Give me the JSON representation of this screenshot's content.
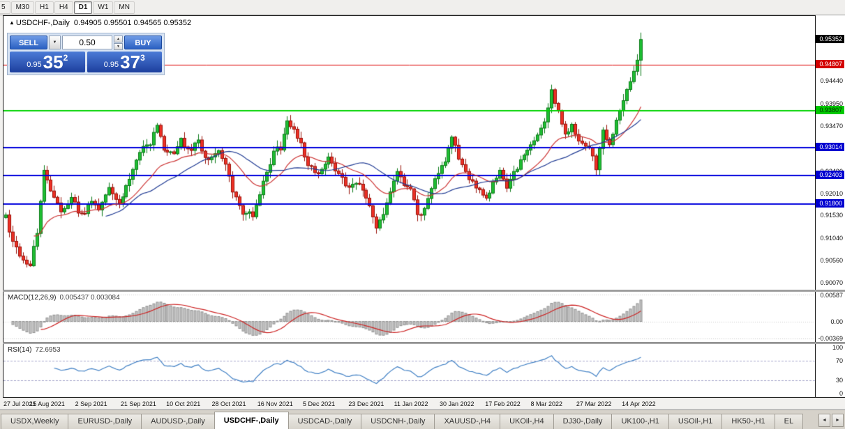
{
  "toolbar": {
    "timeframes": [
      {
        "label": "5",
        "active": false
      },
      {
        "label": "M30",
        "active": false
      },
      {
        "label": "H1",
        "active": false
      },
      {
        "label": "H4",
        "active": false
      },
      {
        "label": "D1",
        "active": true
      },
      {
        "label": "W1",
        "active": false
      },
      {
        "label": "MN",
        "active": false
      }
    ]
  },
  "chart": {
    "marker": "▲",
    "symbol_title": "USDCHF-,Daily",
    "ohlc": "0.94905 0.95501 0.94565 0.95352"
  },
  "trade_panel": {
    "sell_label": "SELL",
    "buy_label": "BUY",
    "lot_value": "0.50",
    "combo_arrow": "▼",
    "spin_up": "▲",
    "spin_down": "▼",
    "sell_prefix": "0.95",
    "sell_pips": "35",
    "sell_frac": "2",
    "buy_prefix": "0.95",
    "buy_pips": "37",
    "buy_frac": "3"
  },
  "price_axis": {
    "ticks": [
      {
        "label": "0.94820",
        "value": 0.9482
      },
      {
        "label": "0.94440",
        "value": 0.9444
      },
      {
        "label": "0.93950",
        "value": 0.9395
      },
      {
        "label": "0.93470",
        "value": 0.9347
      },
      {
        "label": "0.92980",
        "value": 0.9298
      },
      {
        "label": "0.92490",
        "value": 0.9249
      },
      {
        "label": "0.92010",
        "value": 0.9201
      },
      {
        "label": "0.91530",
        "value": 0.9153
      },
      {
        "label": "0.91040",
        "value": 0.9104
      },
      {
        "label": "0.90560",
        "value": 0.9056
      },
      {
        "label": "0.90070",
        "value": 0.9007
      }
    ],
    "badges": [
      {
        "label": "0.95352",
        "value": 0.95352,
        "bg": "#000000",
        "fg": "#ffffff"
      },
      {
        "label": "0.94807",
        "value": 0.94807,
        "bg": "#d40000",
        "fg": "#ffffff"
      },
      {
        "label": "0.93807",
        "value": 0.93807,
        "bg": "#00c800",
        "fg": "#002b00"
      },
      {
        "label": "0.93014",
        "value": 0.93014,
        "bg": "#0000d0",
        "fg": "#ffffff"
      },
      {
        "label": "0.92403",
        "value": 0.92403,
        "bg": "#0000d0",
        "fg": "#ffffff"
      },
      {
        "label": "0.91800",
        "value": 0.918,
        "bg": "#0000d0",
        "fg": "#ffffff"
      }
    ]
  },
  "levels": [
    {
      "price": 0.94807,
      "color": "#dd0000",
      "width": 1
    },
    {
      "price": 0.93807,
      "color": "#00d200",
      "width": 2
    },
    {
      "price": 0.93014,
      "color": "#0000dd",
      "width": 2
    },
    {
      "price": 0.92403,
      "color": "#0000dd",
      "width": 2
    },
    {
      "price": 0.918,
      "color": "#0000dd",
      "width": 2
    }
  ],
  "macd": {
    "label": "MACD(12,26,9)",
    "values": "0.005437 0.003084",
    "axis": [
      {
        "label": "0.00587",
        "value": 0.00587
      },
      {
        "label": "0.00",
        "value": 0
      },
      {
        "label": "-0.00369",
        "value": -0.00369
      }
    ],
    "range": [
      -0.0045,
      0.0065
    ],
    "histogram_fill": "#c6c6c6",
    "histogram_stroke": "#8f8f8f",
    "signal_color": "#cc2222"
  },
  "rsi": {
    "label": "RSI(14)",
    "value": "72.6953",
    "axis": [
      {
        "label": "100",
        "value": 100
      },
      {
        "label": "70",
        "value": 70
      },
      {
        "label": "30",
        "value": 30
      },
      {
        "label": "0",
        "value": 0
      }
    ],
    "guide_levels": [
      70,
      30
    ],
    "line_color": "#3f7fc4"
  },
  "dates": [
    "27 Jul 2021",
    "15 Aug 2021",
    "2 Sep 2021",
    "21 Sep 2021",
    "10 Oct 2021",
    "28 Oct 2021",
    "16 Nov 2021",
    "5 Dec 2021",
    "23 Dec 2021",
    "11 Jan 2022",
    "30 Jan 2022",
    "17 Feb 2022",
    "8 Mar 2022",
    "27 Mar 2022",
    "14 Apr 2022"
  ],
  "tabs": [
    {
      "label": "USDX,Weekly",
      "active": false
    },
    {
      "label": "EURUSD-,Daily",
      "active": false
    },
    {
      "label": "AUDUSD-,Daily",
      "active": false
    },
    {
      "label": "USDCHF-,Daily",
      "active": true
    },
    {
      "label": "USDCAD-,Daily",
      "active": false
    },
    {
      "label": "USDCNH-,Daily",
      "active": false
    },
    {
      "label": "XAUUSD-,H4",
      "active": false
    },
    {
      "label": "UKOil-,H4",
      "active": false
    },
    {
      "label": "DJ30-,Daily",
      "active": false
    },
    {
      "label": "UK100-,H1",
      "active": false
    },
    {
      "label": "USOil-,H1",
      "active": false
    },
    {
      "label": "HK50-,H1",
      "active": false
    },
    {
      "label": "EL",
      "active": false
    }
  ],
  "tab_scroll": {
    "left": "◄",
    "right": "►"
  },
  "chart_data": {
    "type": "candlestick",
    "symbol": "USDCHF-,Daily",
    "num_candles": 186,
    "x_fill": 0.786,
    "price_range": [
      0.8994,
      0.9586
    ],
    "last_candle": {
      "open": 0.94905,
      "high": 0.95501,
      "low": 0.94565,
      "close": 0.95352
    },
    "up_fill": "#1fbf33",
    "up_stroke": "#0b7a18",
    "down_fill": "#ee3126",
    "down_stroke": "#991008",
    "ma_fast": {
      "type": "ema",
      "period": 20,
      "color": "#cc3333"
    },
    "ma_slow": {
      "type": "sma",
      "period": 30,
      "color": "#1f3a93"
    },
    "path_anchors": [
      [
        0,
        0.915
      ],
      [
        2,
        0.9098
      ],
      [
        5,
        0.9052
      ],
      [
        7,
        0.9048
      ],
      [
        9,
        0.9122
      ],
      [
        11,
        0.925
      ],
      [
        13,
        0.9213
      ],
      [
        16,
        0.9158
      ],
      [
        19,
        0.9196
      ],
      [
        22,
        0.9152
      ],
      [
        25,
        0.9182
      ],
      [
        27,
        0.9166
      ],
      [
        30,
        0.9214
      ],
      [
        33,
        0.9182
      ],
      [
        36,
        0.9236
      ],
      [
        39,
        0.9297
      ],
      [
        42,
        0.931
      ],
      [
        44,
        0.9352
      ],
      [
        46,
        0.93
      ],
      [
        49,
        0.9291
      ],
      [
        51,
        0.9318
      ],
      [
        53,
        0.9296
      ],
      [
        56,
        0.9311
      ],
      [
        59,
        0.9272
      ],
      [
        62,
        0.9289
      ],
      [
        64,
        0.9262
      ],
      [
        66,
        0.9212
      ],
      [
        69,
        0.9161
      ],
      [
        72,
        0.9153
      ],
      [
        75,
        0.9226
      ],
      [
        78,
        0.929
      ],
      [
        80,
        0.9303
      ],
      [
        82,
        0.9366
      ],
      [
        84,
        0.9341
      ],
      [
        86,
        0.9306
      ],
      [
        88,
        0.9259
      ],
      [
        91,
        0.9251
      ],
      [
        94,
        0.9281
      ],
      [
        97,
        0.9243
      ],
      [
        100,
        0.9214
      ],
      [
        103,
        0.9223
      ],
      [
        105,
        0.9191
      ],
      [
        108,
        0.9131
      ],
      [
        110,
        0.9156
      ],
      [
        112,
        0.9209
      ],
      [
        114,
        0.9247
      ],
      [
        116,
        0.9226
      ],
      [
        118,
        0.9214
      ],
      [
        120,
        0.9151
      ],
      [
        122,
        0.9173
      ],
      [
        125,
        0.9239
      ],
      [
        128,
        0.9277
      ],
      [
        130,
        0.9321
      ],
      [
        132,
        0.9281
      ],
      [
        134,
        0.9249
      ],
      [
        137,
        0.9219
      ],
      [
        140,
        0.9191
      ],
      [
        142,
        0.9226
      ],
      [
        144,
        0.9251
      ],
      [
        146,
        0.9216
      ],
      [
        149,
        0.9261
      ],
      [
        152,
        0.9291
      ],
      [
        155,
        0.9329
      ],
      [
        157,
        0.9361
      ],
      [
        159,
        0.9426
      ],
      [
        161,
        0.9381
      ],
      [
        163,
        0.9331
      ],
      [
        165,
        0.9347
      ],
      [
        167,
        0.9319
      ],
      [
        169,
        0.9306
      ],
      [
        171,
        0.9289
      ],
      [
        172,
        0.9252
      ],
      [
        174,
        0.9337
      ],
      [
        176,
        0.9306
      ],
      [
        178,
        0.9359
      ],
      [
        180,
        0.9397
      ],
      [
        182,
        0.945
      ],
      [
        184,
        0.9492
      ],
      [
        185,
        0.95352
      ]
    ]
  }
}
